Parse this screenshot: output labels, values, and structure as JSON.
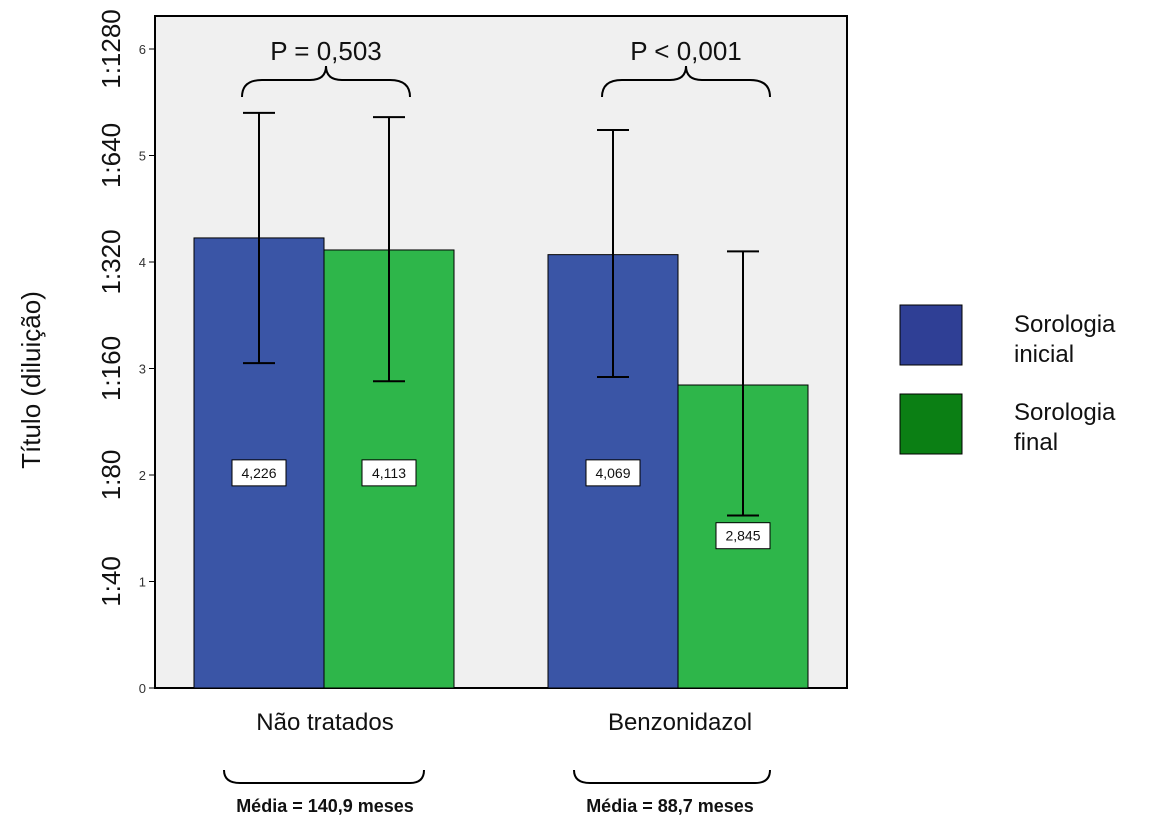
{
  "chart_data": {
    "type": "bar",
    "ylabel": "Título (diluição)",
    "ylim": [
      0,
      6.3
    ],
    "y_ticks": [
      0,
      1,
      2,
      3,
      4,
      5,
      6
    ],
    "y_dilution_labels": [
      "1:40",
      "1:80",
      "1:160",
      "1:320",
      "1:640",
      "1:1280"
    ],
    "categories": [
      "Não tratados",
      "Benzonidazol"
    ],
    "series": [
      {
        "name": "Sorologia inicial",
        "color": "#3a55a6",
        "values": [
          4.226,
          4.069
        ],
        "error_low": [
          3.05,
          2.92
        ],
        "error_high": [
          5.4,
          5.24
        ],
        "data_labels": [
          "4,226",
          "4,069"
        ]
      },
      {
        "name": "Sorologia final",
        "color": "#2eb64a",
        "values": [
          4.113,
          2.845
        ],
        "error_low": [
          2.88,
          1.62
        ],
        "error_high": [
          5.36,
          4.1
        ],
        "data_labels": [
          "4,113",
          "2,845"
        ]
      }
    ],
    "annotations": [
      "P = 0,503",
      "P < 0,001"
    ],
    "group_means": [
      "Média = 140,9 meses",
      "Média = 88,7 meses"
    ],
    "legend_position": "right",
    "grid": false,
    "plot_background": "#f0f0f0"
  }
}
